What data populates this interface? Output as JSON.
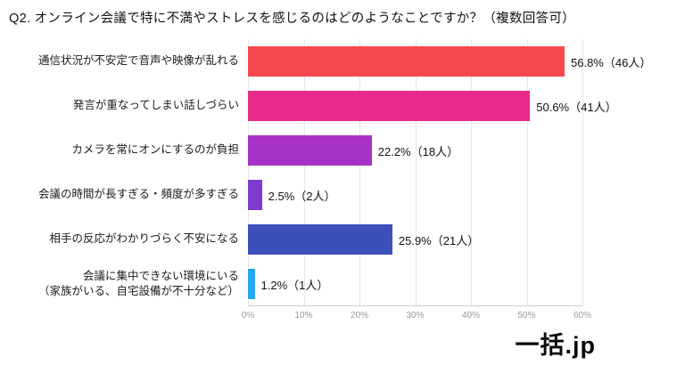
{
  "title": "Q2. オンライン会議で特に不満やストレスを感じるのはどのようなことですか？（複数回答可）",
  "logo": "一括.jp",
  "chart_data": {
    "type": "bar",
    "orientation": "horizontal",
    "title": "Q2. オンライン会議で特に不満やストレスを感じるのはどのようなことですか？（複数回答可）",
    "categories": [
      "通信状況が不安定で音声や映像が乱れる",
      "発言が重なってしまい話しづらい",
      "カメラを常にオンにするのが負担",
      "会議の時間が長すぎる・頻度が多すぎる",
      "相手の反応がわかりづらく不安になる",
      "会議に集中できない環境にいる\n（家族がいる、自宅設備が不十分など）"
    ],
    "values": [
      56.8,
      50.6,
      22.2,
      2.5,
      25.9,
      1.2
    ],
    "counts": [
      46,
      41,
      18,
      2,
      21,
      1
    ],
    "value_labels": [
      "56.8%（46人）",
      "50.6%（41人）",
      "22.2%（18人）",
      "2.5%（2人）",
      "25.9%（21人）",
      "1.2%（1人）"
    ],
    "colors": [
      "#f5484e",
      "#e82a8a",
      "#a531c6",
      "#7d3bd0",
      "#3c4fba",
      "#27a5f2"
    ],
    "xlabel": "",
    "ylabel": "",
    "xlim": [
      0,
      60
    ],
    "x_ticks": [
      "0%",
      "10%",
      "20%",
      "30%",
      "40%",
      "50%",
      "60%"
    ],
    "grid": true,
    "legend": false
  }
}
